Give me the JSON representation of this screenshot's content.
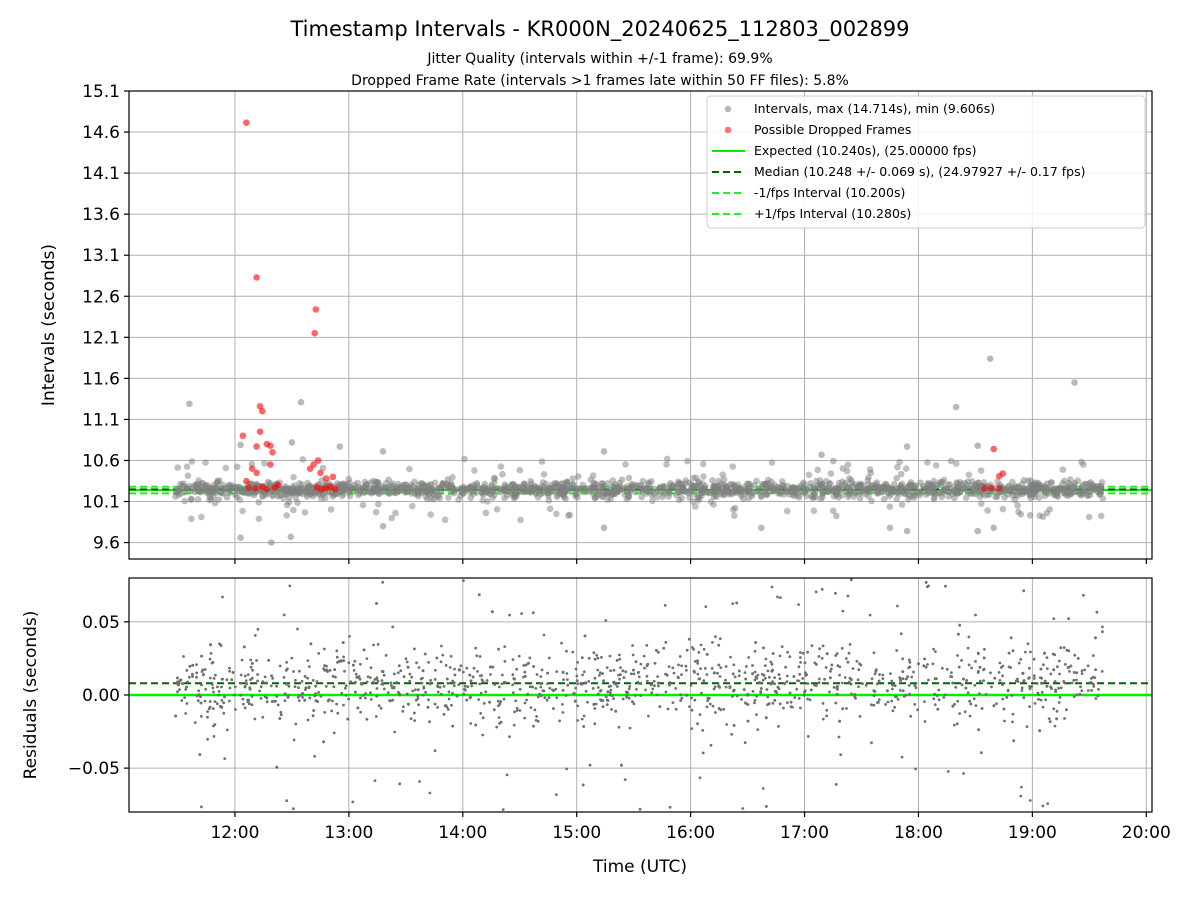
{
  "chart_data": {
    "type": "scatter",
    "title": "Timestamp Intervals - KR000N_20240625_112803_002899",
    "subtitle_1": "Jitter Quality (intervals within +/-1 frame): 69.9%",
    "subtitle_2": "Dropped Frame Rate (intervals >1 frames late within 50 FF files): 5.8%",
    "xlabel": "Time (UTC)",
    "x_ticks": [
      "12:00",
      "13:00",
      "14:00",
      "15:00",
      "16:00",
      "17:00",
      "18:00",
      "19:00",
      "20:00"
    ],
    "x_range_hours": [
      11.07,
      20.05
    ],
    "grid": true,
    "legend_position": "top-right",
    "top_panel": {
      "ylabel": "Intervals (seconds)",
      "ylim": [
        9.4,
        15.1
      ],
      "y_ticks": [
        "9.6",
        "10.1",
        "10.6",
        "11.1",
        "11.6",
        "12.1",
        "12.6",
        "13.1",
        "13.6",
        "14.1",
        "14.6",
        "15.1"
      ],
      "data_range_hours": [
        11.47,
        19.62
      ],
      "reference_lines": {
        "expected": 10.24,
        "median": 10.248,
        "minus_1_fps": 10.2,
        "plus_1_fps": 10.28
      },
      "series": [
        {
          "name": "Intervals, max (14.714s), min (9.606s)",
          "color": "#808080",
          "outliers": [
            {
              "x": 11.6,
              "y": 11.29
            },
            {
              "x": 12.05,
              "y": 9.66
            },
            {
              "x": 12.32,
              "y": 9.6
            },
            {
              "x": 12.49,
              "y": 9.67
            },
            {
              "x": 12.58,
              "y": 11.31
            },
            {
              "x": 12.5,
              "y": 10.82
            },
            {
              "x": 12.05,
              "y": 10.79
            },
            {
              "x": 12.92,
              "y": 10.77
            },
            {
              "x": 13.3,
              "y": 10.71
            },
            {
              "x": 13.3,
              "y": 9.8
            },
            {
              "x": 15.24,
              "y": 10.71
            },
            {
              "x": 15.24,
              "y": 9.78
            },
            {
              "x": 16.62,
              "y": 9.78
            },
            {
              "x": 17.15,
              "y": 10.67
            },
            {
              "x": 17.75,
              "y": 9.78
            },
            {
              "x": 17.9,
              "y": 10.77
            },
            {
              "x": 17.9,
              "y": 9.74
            },
            {
              "x": 18.33,
              "y": 11.25
            },
            {
              "x": 18.52,
              "y": 10.78
            },
            {
              "x": 18.52,
              "y": 9.74
            },
            {
              "x": 18.63,
              "y": 11.84
            },
            {
              "x": 18.66,
              "y": 9.78
            },
            {
              "x": 19.37,
              "y": 11.55
            }
          ]
        },
        {
          "name": "Possible Dropped Frames",
          "color": "#ff0000",
          "values": [
            {
              "x": 12.1,
              "y": 14.714
            },
            {
              "x": 12.19,
              "y": 12.83
            },
            {
              "x": 12.71,
              "y": 12.44
            },
            {
              "x": 12.7,
              "y": 12.15
            },
            {
              "x": 12.22,
              "y": 11.26
            },
            {
              "x": 12.24,
              "y": 11.2
            },
            {
              "x": 12.07,
              "y": 10.9
            },
            {
              "x": 12.22,
              "y": 10.95
            },
            {
              "x": 12.28,
              "y": 10.8
            },
            {
              "x": 12.31,
              "y": 10.78
            },
            {
              "x": 12.19,
              "y": 10.77
            },
            {
              "x": 12.33,
              "y": 10.7
            },
            {
              "x": 12.15,
              "y": 10.5
            },
            {
              "x": 12.19,
              "y": 10.45
            },
            {
              "x": 12.31,
              "y": 10.55
            },
            {
              "x": 12.69,
              "y": 10.55
            },
            {
              "x": 12.73,
              "y": 10.6
            },
            {
              "x": 12.66,
              "y": 10.5
            },
            {
              "x": 12.75,
              "y": 10.45
            },
            {
              "x": 12.8,
              "y": 10.38
            },
            {
              "x": 12.86,
              "y": 10.4
            },
            {
              "x": 12.1,
              "y": 10.35
            },
            {
              "x": 12.12,
              "y": 10.27
            },
            {
              "x": 12.18,
              "y": 10.26
            },
            {
              "x": 12.24,
              "y": 10.28
            },
            {
              "x": 12.28,
              "y": 10.25
            },
            {
              "x": 12.35,
              "y": 10.27
            },
            {
              "x": 12.38,
              "y": 10.3
            },
            {
              "x": 12.72,
              "y": 10.27
            },
            {
              "x": 12.76,
              "y": 10.25
            },
            {
              "x": 12.8,
              "y": 10.26
            },
            {
              "x": 12.84,
              "y": 10.28
            },
            {
              "x": 12.88,
              "y": 10.25
            },
            {
              "x": 18.58,
              "y": 10.26
            },
            {
              "x": 18.64,
              "y": 10.26
            },
            {
              "x": 18.71,
              "y": 10.26
            },
            {
              "x": 18.66,
              "y": 10.74
            },
            {
              "x": 18.71,
              "y": 10.41
            },
            {
              "x": 18.74,
              "y": 10.44
            }
          ]
        },
        {
          "name": "Expected (10.240s), (25.00000 fps)",
          "color": "#00ee00",
          "style": "solid"
        },
        {
          "name": "Median (10.248 +/- 0.069 s), (24.97927 +/- 0.17 fps)",
          "color": "#006400",
          "style": "dashed"
        },
        {
          "name": "-1/fps Interval (10.200s)",
          "color": "#22ee22",
          "style": "dashed"
        },
        {
          "name": "+1/fps Interval (10.280s)",
          "color": "#22ee22",
          "style": "dashed"
        }
      ]
    },
    "bottom_panel": {
      "ylabel": "Residuals (seconds)",
      "ylim": [
        -0.08,
        0.08
      ],
      "y_ticks": [
        "0.05",
        "0.00",
        "−0.05"
      ],
      "y_tick_values": [
        0.05,
        0.0,
        -0.05
      ],
      "expected_line": 0.0,
      "median_line": 0.008,
      "point_color": "#707070"
    }
  }
}
